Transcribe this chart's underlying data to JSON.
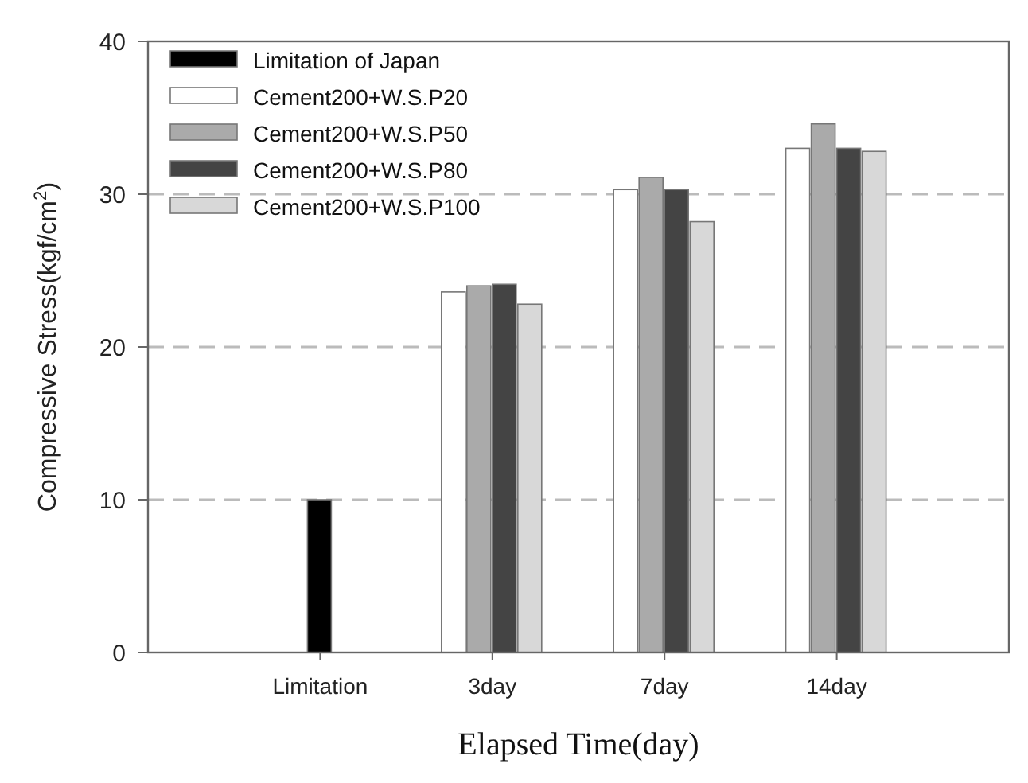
{
  "chart_data": {
    "type": "bar",
    "xlabel": "Elapsed Time(day)",
    "ylabel": "Compressive Stress(kgf/cm$^{2}$)",
    "categories": [
      "Limitation",
      "3day",
      "7day",
      "14day"
    ],
    "series": [
      {
        "name": "Limitation of Japan",
        "color": "#000000",
        "values": [
          10,
          null,
          null,
          null
        ]
      },
      {
        "name": "Cement200+W.S.P20",
        "color": "#ffffff",
        "values": [
          null,
          23.6,
          30.3,
          33.0
        ]
      },
      {
        "name": "Cement200+W.S.P50",
        "color": "#aaaaaa",
        "values": [
          null,
          24.0,
          31.1,
          34.6
        ]
      },
      {
        "name": "Cement200+W.S.P80",
        "color": "#444444",
        "values": [
          null,
          24.1,
          30.3,
          33.0
        ]
      },
      {
        "name": "Cement200+W.S.P100",
        "color": "#d8d8d8",
        "values": [
          null,
          22.8,
          28.2,
          32.8
        ]
      }
    ],
    "ylim": [
      0,
      40
    ],
    "yticks": [
      0,
      10,
      20,
      30,
      40
    ],
    "grid": "y",
    "legend": "top left"
  }
}
